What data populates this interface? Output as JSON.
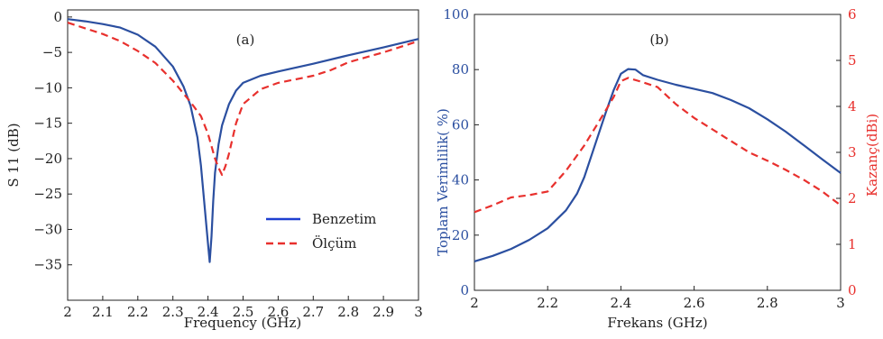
{
  "chart_data": [
    {
      "type": "line",
      "panel_label": "(a)",
      "xlabel": "Frequency (GHz)",
      "ylabel": "S 11 (dB)",
      "xlim": [
        2,
        3
      ],
      "ylim": [
        -40,
        1
      ],
      "xticks": [
        2,
        2.1,
        2.2,
        2.3,
        2.4,
        2.5,
        2.6,
        2.7,
        2.8,
        2.9,
        3
      ],
      "yticks": [
        0,
        -5,
        -10,
        -15,
        -20,
        -25,
        -30,
        -35
      ],
      "legend_position": "middle-right",
      "series": [
        {
          "name": "Benzetim",
          "color": "#2b4fa0",
          "dash": "solid",
          "x": [
            2.0,
            2.05,
            2.1,
            2.15,
            2.2,
            2.25,
            2.3,
            2.33,
            2.35,
            2.37,
            2.38,
            2.39,
            2.4,
            2.405,
            2.41,
            2.415,
            2.42,
            2.43,
            2.44,
            2.46,
            2.48,
            2.5,
            2.55,
            2.6,
            2.7,
            2.8,
            2.9,
            3.0
          ],
          "y": [
            -0.3,
            -0.6,
            -1.0,
            -1.5,
            -2.5,
            -4.2,
            -7.0,
            -9.8,
            -12.5,
            -17.0,
            -21.0,
            -26.5,
            -32.0,
            -34.6,
            -31.0,
            -26.0,
            -22.0,
            -18.0,
            -15.3,
            -12.3,
            -10.4,
            -9.3,
            -8.3,
            -7.7,
            -6.6,
            -5.4,
            -4.3,
            -3.1
          ]
        },
        {
          "name": "Ölçüm",
          "color": "#e8302d",
          "dash": "dashed",
          "x": [
            2.0,
            2.05,
            2.1,
            2.15,
            2.2,
            2.25,
            2.3,
            2.35,
            2.38,
            2.4,
            2.42,
            2.43,
            2.44,
            2.45,
            2.46,
            2.48,
            2.5,
            2.55,
            2.6,
            2.65,
            2.7,
            2.75,
            2.8,
            2.9,
            3.0
          ],
          "y": [
            -0.8,
            -1.6,
            -2.4,
            -3.4,
            -4.8,
            -6.5,
            -9.0,
            -12.0,
            -14.0,
            -16.5,
            -20.0,
            -21.3,
            -22.3,
            -21.0,
            -19.3,
            -15.0,
            -12.3,
            -10.2,
            -9.3,
            -8.8,
            -8.3,
            -7.5,
            -6.4,
            -5.0,
            -3.4
          ]
        }
      ]
    },
    {
      "type": "line",
      "panel_label": "(b)",
      "xlabel": "Frekans (GHz)",
      "ylabel": "Toplam Verimlilik( %)",
      "y2label": "Kazanç(dBi)",
      "xlim": [
        2,
        3
      ],
      "ylim": [
        0,
        100
      ],
      "y2lim": [
        0,
        6
      ],
      "xticks": [
        2,
        2.2,
        2.4,
        2.6,
        2.8,
        3
      ],
      "yticks": [
        0,
        20,
        40,
        60,
        80,
        100
      ],
      "y2ticks": [
        0,
        1,
        2,
        3,
        4,
        5,
        6
      ],
      "left_axis_color": "#2b4fa0",
      "right_axis_color": "#e8302d",
      "series": [
        {
          "axis": "left",
          "color": "#2b4fa0",
          "dash": "solid",
          "x": [
            2.0,
            2.05,
            2.1,
            2.15,
            2.2,
            2.25,
            2.28,
            2.3,
            2.33,
            2.36,
            2.38,
            2.4,
            2.42,
            2.44,
            2.46,
            2.5,
            2.55,
            2.6,
            2.65,
            2.7,
            2.75,
            2.8,
            2.85,
            2.9,
            2.95,
            3.0
          ],
          "y": [
            10.5,
            12.5,
            15.0,
            18.3,
            22.5,
            29.0,
            35.0,
            41.0,
            53.0,
            65.0,
            72.5,
            78.5,
            80.2,
            80.0,
            78.0,
            76.3,
            74.5,
            73.0,
            71.5,
            69.0,
            66.0,
            62.0,
            57.5,
            52.5,
            47.5,
            42.5
          ]
        },
        {
          "axis": "right",
          "color": "#e8302d",
          "dash": "dashed",
          "x": [
            2.0,
            2.05,
            2.1,
            2.15,
            2.2,
            2.25,
            2.3,
            2.35,
            2.38,
            2.4,
            2.42,
            2.45,
            2.5,
            2.55,
            2.6,
            2.65,
            2.7,
            2.75,
            2.8,
            2.85,
            2.9,
            2.95,
            3.0
          ],
          "y": [
            1.7,
            1.85,
            2.02,
            2.07,
            2.15,
            2.6,
            3.15,
            3.8,
            4.2,
            4.55,
            4.62,
            4.55,
            4.42,
            4.05,
            3.75,
            3.5,
            3.25,
            3.0,
            2.82,
            2.62,
            2.4,
            2.15,
            1.85
          ]
        }
      ]
    }
  ]
}
